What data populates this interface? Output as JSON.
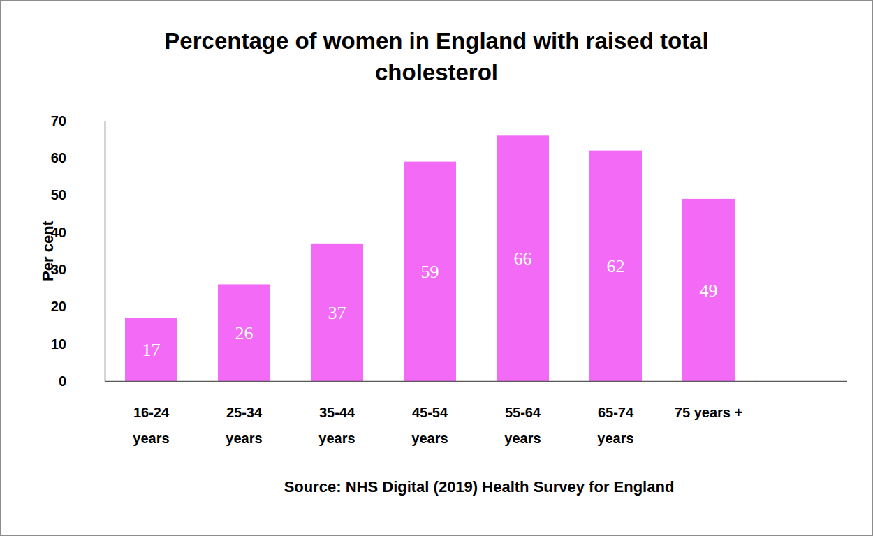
{
  "chart_data": {
    "type": "bar",
    "title": "Percentage of women in England with raised total cholesterol",
    "y_label": "Per cent",
    "source": "Source: NHS Digital (2019) Health Survey for England",
    "categories": [
      "16-24 years",
      "25-34 years",
      "35-44 years",
      "45-54 years",
      "55-64 years",
      "65-74 years",
      "75 years +"
    ],
    "values": [
      17,
      26,
      37,
      59,
      66,
      62,
      49
    ],
    "color": "#f36af7",
    "ylim": [
      0,
      70
    ],
    "yticks": [
      0,
      10,
      20,
      30,
      40,
      50,
      60,
      70
    ],
    "grid": false,
    "data_labels": true
  }
}
